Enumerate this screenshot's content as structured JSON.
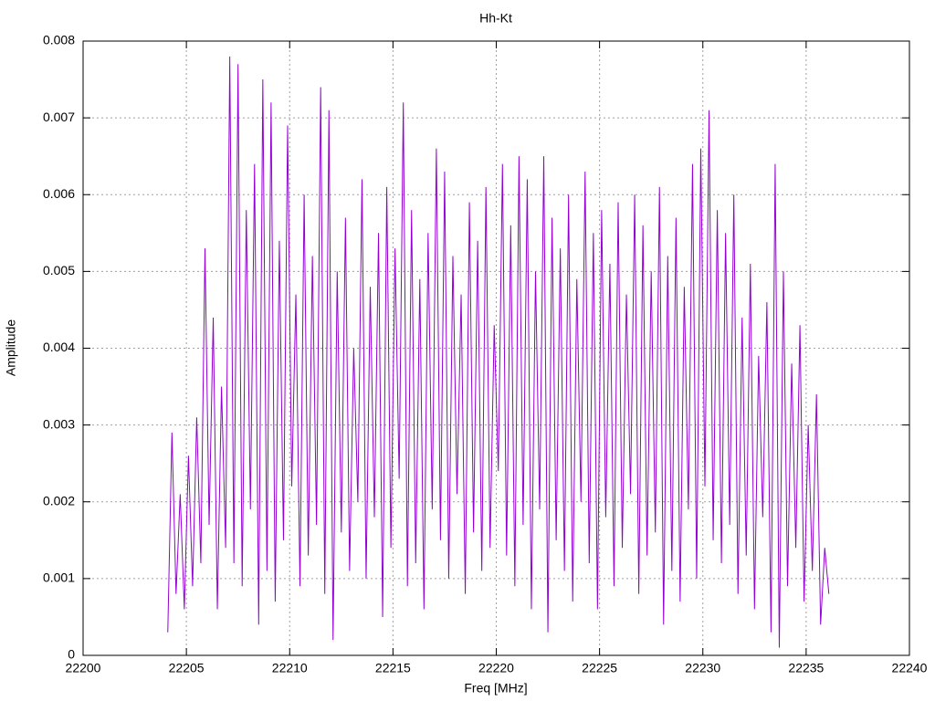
{
  "chart_data": {
    "type": "line",
    "title": "Hh-Kt",
    "x_label": "Freq [MHz]",
    "y_label": "Amplitude",
    "x": [
      22204.1,
      22204.3,
      22204.5,
      22204.7,
      22204.9,
      22205.1,
      22205.3,
      22205.5,
      22205.7,
      22205.9,
      22206.1,
      22206.3,
      22206.5,
      22206.7,
      22206.9,
      22207.1,
      22207.3,
      22207.5,
      22207.7,
      22207.9,
      22208.1,
      22208.3,
      22208.5,
      22208.7,
      22208.9,
      22209.1,
      22209.3,
      22209.5,
      22209.7,
      22209.9,
      22210.1,
      22210.3,
      22210.5,
      22210.7,
      22210.9,
      22211.1,
      22211.3,
      22211.5,
      22211.7,
      22211.9,
      22212.1,
      22212.3,
      22212.5,
      22212.7,
      22212.9,
      22213.1,
      22213.3,
      22213.5,
      22213.7,
      22213.9,
      22214.1,
      22214.3,
      22214.5,
      22214.7,
      22214.9,
      22215.1,
      22215.3,
      22215.5,
      22215.7,
      22215.9,
      22216.1,
      22216.3,
      22216.5,
      22216.7,
      22216.9,
      22217.1,
      22217.3,
      22217.5,
      22217.7,
      22217.9,
      22218.1,
      22218.3,
      22218.5,
      22218.7,
      22218.9,
      22219.1,
      22219.3,
      22219.5,
      22219.7,
      22219.9,
      22220.1,
      22220.3,
      22220.5,
      22220.7,
      22220.9,
      22221.1,
      22221.3,
      22221.5,
      22221.7,
      22221.9,
      22222.1,
      22222.3,
      22222.5,
      22222.7,
      22222.9,
      22223.1,
      22223.3,
      22223.5,
      22223.7,
      22223.9,
      22224.1,
      22224.3,
      22224.5,
      22224.7,
      22224.9,
      22225.1,
      22225.3,
      22225.5,
      22225.7,
      22225.9,
      22226.1,
      22226.3,
      22226.5,
      22226.7,
      22226.9,
      22227.1,
      22227.3,
      22227.5,
      22227.7,
      22227.9,
      22228.1,
      22228.3,
      22228.5,
      22228.7,
      22228.9,
      22229.1,
      22229.3,
      22229.5,
      22229.7,
      22229.9,
      22230.1,
      22230.3,
      22230.5,
      22230.7,
      22230.9,
      22231.1,
      22231.3,
      22231.5,
      22231.7,
      22231.9,
      22232.1,
      22232.3,
      22232.5,
      22232.7,
      22232.9,
      22233.1,
      22233.3,
      22233.5,
      22233.7,
      22233.9,
      22234.1,
      22234.3,
      22234.5,
      22234.7,
      22234.9,
      22235.1,
      22235.3,
      22235.5,
      22235.7,
      22235.9,
      22236.1
    ],
    "series": [
      {
        "color": "#9400d3",
        "values": [
          0.0003,
          0.0029,
          0.0008,
          0.0021,
          0.0006,
          0.0026,
          0.0009,
          0.0031,
          0.0012,
          0.0053,
          0.0017,
          0.0044,
          0.0006,
          0.0035,
          0.0014,
          0.0078,
          0.0012,
          0.0077,
          0.0009,
          0.0058,
          0.0019,
          0.0064,
          0.0004,
          0.0075,
          0.0011,
          0.0072,
          0.0007,
          0.0054,
          0.0015,
          0.0069,
          0.0022,
          0.0047,
          0.0009,
          0.006,
          0.0013,
          0.0052,
          0.0017,
          0.0074,
          0.0008,
          0.0071,
          0.0002,
          0.005,
          0.0016,
          0.0057,
          0.0011,
          0.004,
          0.002,
          0.0062,
          0.001,
          0.0048,
          0.0018,
          0.0055,
          0.0005,
          0.0061,
          0.0014,
          0.0053,
          0.0023,
          0.0072,
          0.0009,
          0.0058,
          0.0012,
          0.0049,
          0.0006,
          0.0055,
          0.0019,
          0.0066,
          0.0015,
          0.0063,
          0.001,
          0.0052,
          0.0021,
          0.0047,
          0.0008,
          0.0059,
          0.0016,
          0.0054,
          0.0011,
          0.0061,
          0.0014,
          0.0043,
          0.0024,
          0.0064,
          0.0013,
          0.0056,
          0.0009,
          0.0065,
          0.0017,
          0.0062,
          0.0006,
          0.005,
          0.0019,
          0.0065,
          0.0003,
          0.0057,
          0.0015,
          0.0053,
          0.0011,
          0.006,
          0.0007,
          0.0049,
          0.002,
          0.0063,
          0.0012,
          0.0055,
          0.0006,
          0.0058,
          0.0018,
          0.0051,
          0.0009,
          0.0059,
          0.0014,
          0.0047,
          0.0021,
          0.006,
          0.0008,
          0.0056,
          0.0013,
          0.005,
          0.0016,
          0.0061,
          0.0004,
          0.0052,
          0.0011,
          0.0057,
          0.0007,
          0.0048,
          0.0019,
          0.0064,
          0.001,
          0.0066,
          0.0022,
          0.0071,
          0.0015,
          0.0058,
          0.0012,
          0.0055,
          0.0017,
          0.006,
          0.0008,
          0.0044,
          0.0013,
          0.0051,
          0.0006,
          0.0039,
          0.0018,
          0.0046,
          0.0003,
          0.0064,
          0.0001,
          0.005,
          0.0009,
          0.0038,
          0.0014,
          0.0043,
          0.0007,
          0.003,
          0.0011,
          0.0034,
          0.0004,
          0.0014,
          0.0008
        ]
      }
    ],
    "xlim": [
      22200,
      22240
    ],
    "xticks": [
      22200,
      22205,
      22210,
      22215,
      22220,
      22225,
      22230,
      22235,
      22240
    ],
    "ylim": [
      0,
      0.008
    ],
    "yticks": [
      0,
      0.001,
      0.002,
      0.003,
      0.004,
      0.005,
      0.006,
      0.007,
      0.008
    ],
    "grid": true
  }
}
